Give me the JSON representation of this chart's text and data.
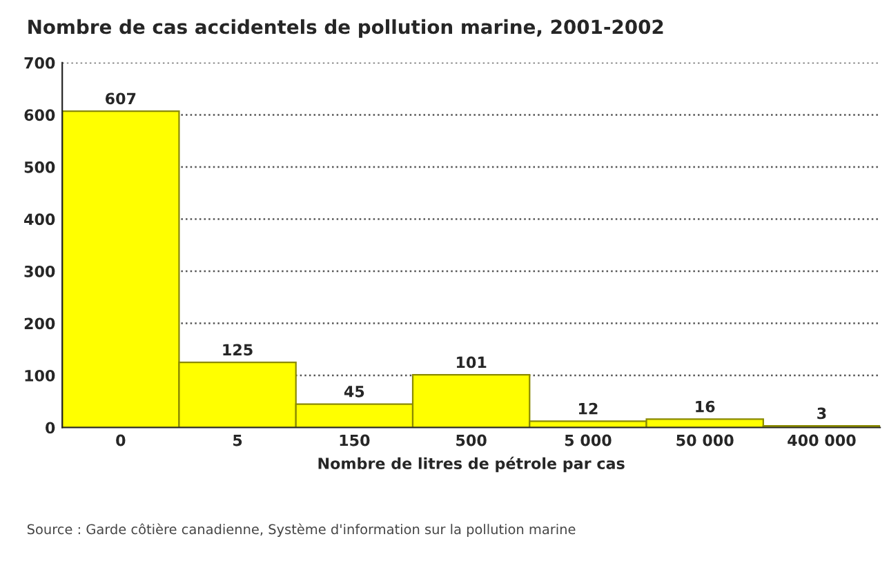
{
  "chart_data": {
    "type": "bar",
    "title": "Nombre de cas accidentels de pollution marine, 2001-2002",
    "xlabel": "Nombre de litres de pétrole par cas",
    "categories": [
      "0",
      "5",
      "150",
      "500",
      "5 000",
      "50 000",
      "400 000"
    ],
    "values": [
      607,
      125,
      45,
      101,
      12,
      16,
      3
    ],
    "color": "#ffff00",
    "ylim": [
      0,
      700
    ],
    "yticks": [
      0,
      100,
      200,
      300,
      400,
      500,
      600,
      700
    ],
    "grid": "y",
    "data_labels": true,
    "annotations": [
      "Source : Garde côtière canadienne, Système d'information sur la pollution marine"
    ]
  }
}
